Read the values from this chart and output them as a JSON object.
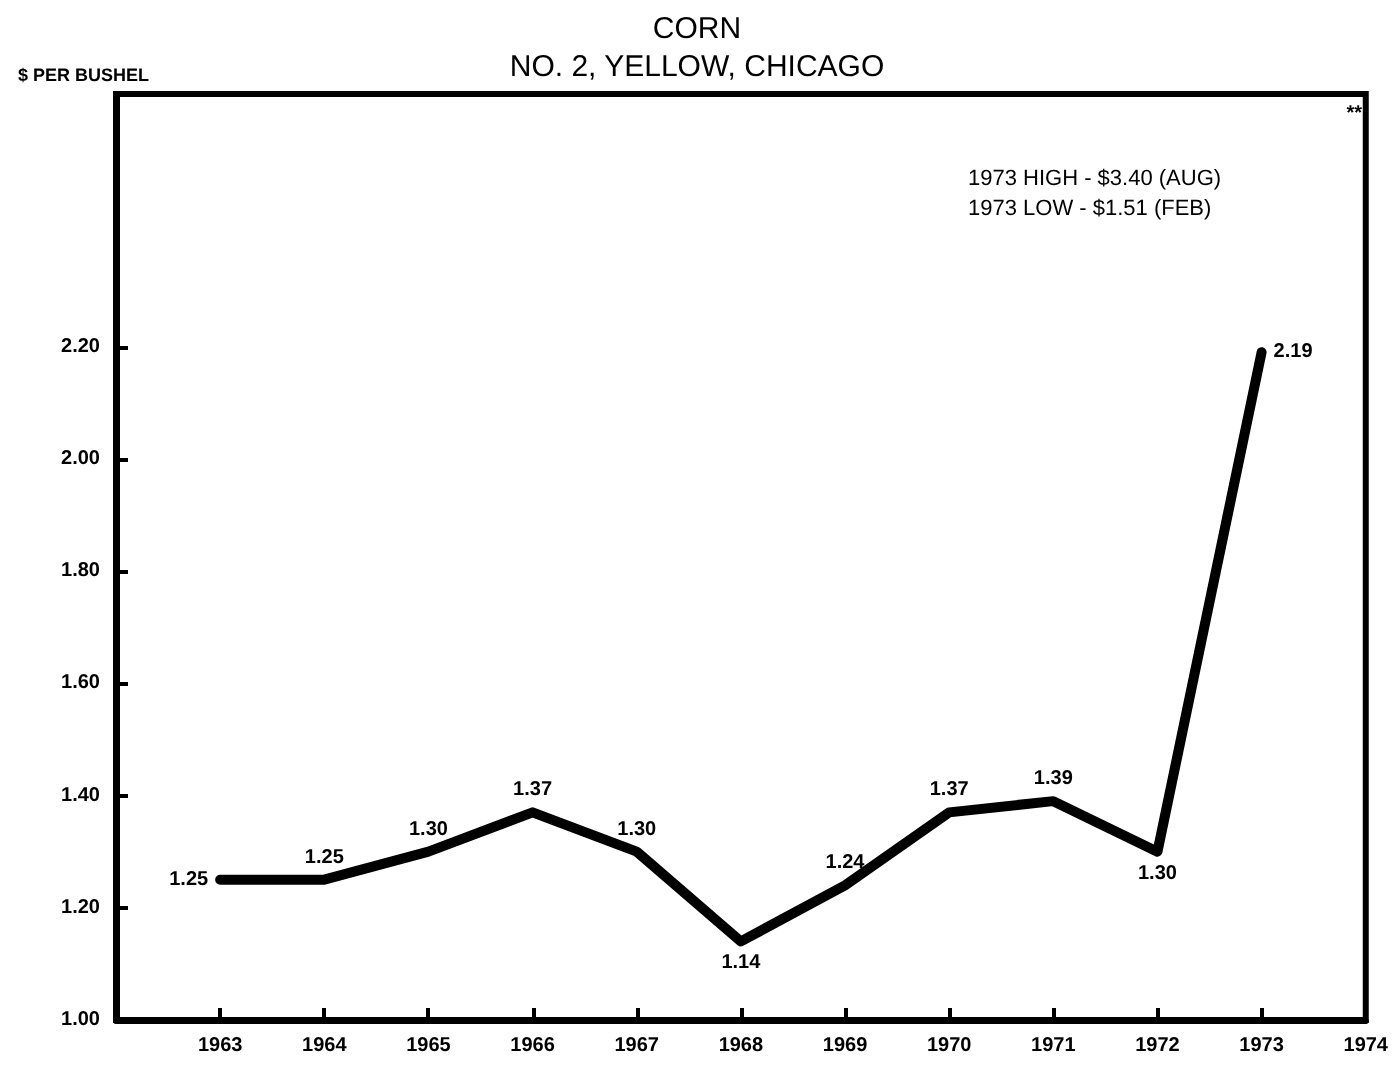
{
  "chart_data": {
    "type": "line",
    "title": "CORN",
    "subtitle": "NO. 2, YELLOW, CHICAGO",
    "ylabel": "$ PER BUSHEL",
    "x": [
      1963,
      1964,
      1965,
      1966,
      1967,
      1968,
      1969,
      1970,
      1971,
      1972,
      1973
    ],
    "series": [
      {
        "color": "#000000",
        "values": [
          1.25,
          1.25,
          1.3,
          1.37,
          1.3,
          1.14,
          1.24,
          1.37,
          1.39,
          1.3,
          2.19
        ],
        "value_labels": [
          "1.25",
          "1.25",
          "1.30",
          "1.37",
          "1.30",
          "1.14",
          "1.24",
          "1.37",
          "1.39",
          "1.30",
          "2.19"
        ]
      }
    ],
    "xlim": [
      1962,
      1974
    ],
    "xticks": [
      1963,
      1964,
      1965,
      1966,
      1967,
      1968,
      1969,
      1970,
      1971,
      1972,
      1973,
      1974
    ],
    "ylim": [
      1.0,
      2.65
    ],
    "yticks": [
      {
        "value": 1.0,
        "label": "1.00"
      },
      {
        "value": 1.2,
        "label": "1.20"
      },
      {
        "value": 1.4,
        "label": "1.40"
      },
      {
        "value": 1.6,
        "label": "1.60"
      },
      {
        "value": 1.8,
        "label": "1.80"
      },
      {
        "value": 2.0,
        "label": "2.00"
      },
      {
        "value": 2.2,
        "label": "2.20"
      }
    ],
    "annotations": [
      "1973 HIGH - $3.40 (AUG)\n1973 LOW - $1.51 (FEB)",
      "**"
    ],
    "grid": false,
    "marker": "none",
    "line_style": "solid"
  }
}
